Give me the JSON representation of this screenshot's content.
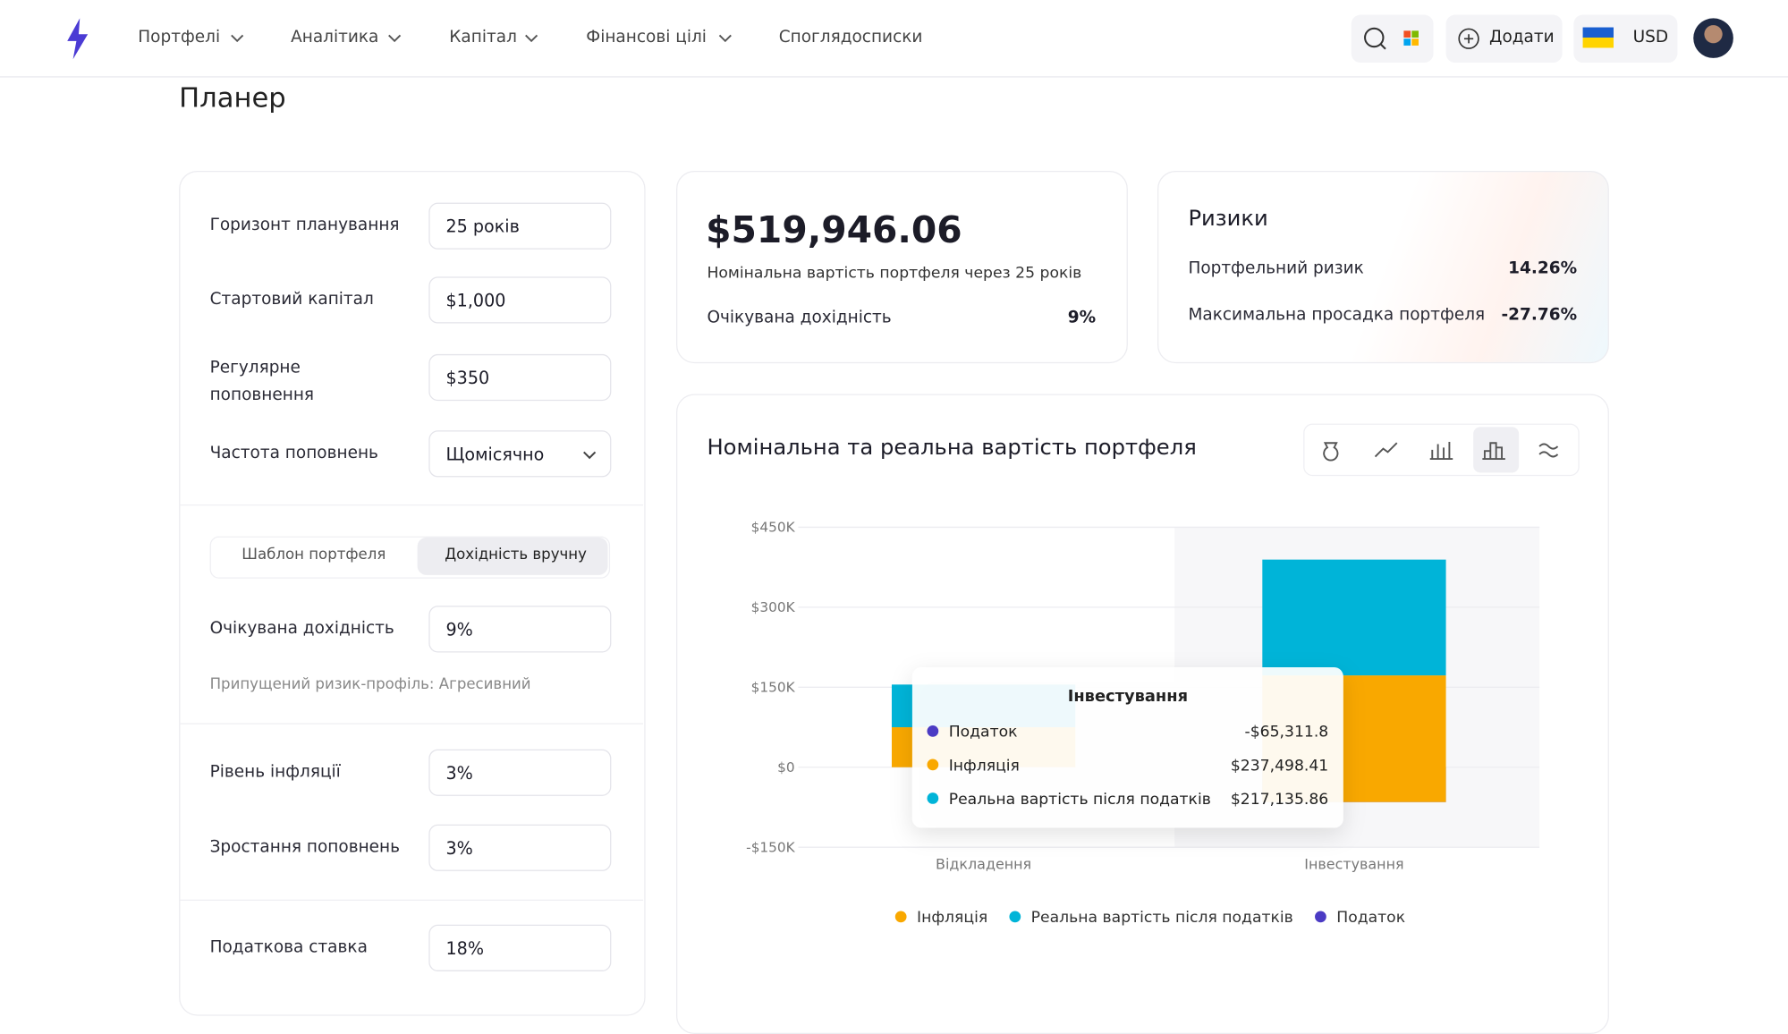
{
  "nav": {
    "items": [
      "Портфелі",
      "Аналітика",
      "Капітал",
      "Фінансові цілі",
      "Споглядосписки"
    ],
    "add": "Додати",
    "currency": "USD"
  },
  "page_title": "Планер",
  "form": {
    "fields": [
      {
        "label": "Горизонт планування",
        "value": "25 років"
      },
      {
        "label": "Стартовий капітал",
        "value": "$1,000"
      },
      {
        "label": "Регулярне поповнення",
        "value": "$350"
      },
      {
        "label": "Частота поповнень",
        "value": "Щомісячно"
      }
    ],
    "tabs": [
      "Шаблон портфеля",
      "Дохідність вручну"
    ],
    "return_field": {
      "label": "Очікувана дохідність",
      "value": "9%"
    },
    "risk_note": "Припущений ризик-профіль: Агресивний",
    "more_fields": [
      {
        "label": "Рівень інфляції",
        "value": "3%"
      },
      {
        "label": "Зростання поповнень",
        "value": "3%"
      }
    ],
    "tax_field": {
      "label": "Податкова ставка",
      "value": "18%"
    }
  },
  "summary": {
    "amount": "$519,946.06",
    "caption": "Номінальна вартість портфеля через 25 років",
    "return_label": "Очікувана дохідність",
    "return_value": "9%"
  },
  "risks": {
    "title": "Ризики",
    "rows": [
      {
        "label": "Портфельний ризик",
        "value": "14.26%"
      },
      {
        "label": "Максимальна просадка портфеля",
        "value": "-27.76%"
      }
    ]
  },
  "chart_data": {
    "type": "bar",
    "stacked": true,
    "title": "Номінальна та реальна вартість портфеля",
    "categories": [
      "Відкладення",
      "Інвестування"
    ],
    "series": [
      {
        "name": "Інфляція",
        "color": "#f9a800",
        "values": [
          75000,
          237498.41
        ],
        "value_labels": [
          null,
          "$237,498.41"
        ]
      },
      {
        "name": "Реальна вартість після податків",
        "color": "#00b4d8",
        "values": [
          80000,
          217135.86
        ],
        "value_labels": [
          null,
          "$217,135.86"
        ]
      },
      {
        "name": "Податок",
        "color": "#4b3bc4",
        "values": [
          0,
          -65311.8
        ],
        "value_labels": [
          null,
          "-$65,311.8"
        ]
      }
    ],
    "ylim": [
      -150000,
      450000
    ],
    "yticks": [
      {
        "value": -150000,
        "label": "-$150K"
      },
      {
        "value": 0,
        "label": "$0"
      },
      {
        "value": 150000,
        "label": "$150K"
      },
      {
        "value": 300000,
        "label": "$300K"
      },
      {
        "value": 450000,
        "label": "$450K"
      }
    ],
    "grid": true,
    "highlighted_category": 1
  }
}
